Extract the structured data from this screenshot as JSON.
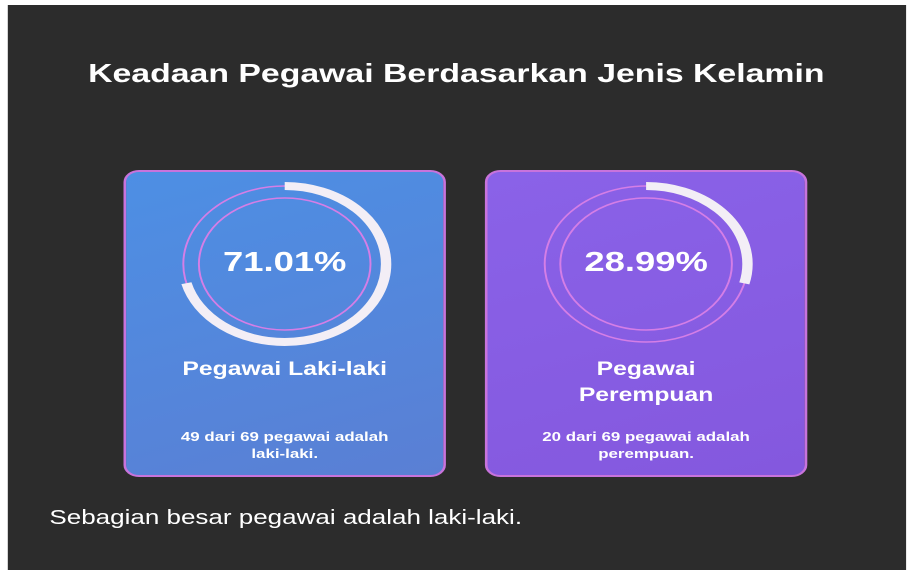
{
  "header": {
    "title": "Keadaan Pegawai Berdasarkan Jenis Kelamin"
  },
  "cards": [
    {
      "value": 71.01,
      "label": "71.01%",
      "name": "Pegawai Laki-laki",
      "description": "49 dari 69 pegawai adalah laki-laki."
    },
    {
      "value": 28.99,
      "label": "28.99%",
      "name": "Pegawai Perempuan",
      "description": "20 dari 69 pegawai adalah perempuan."
    }
  ],
  "footer": {
    "text": "Sebagian besar pegawai adalah laki-laki."
  }
}
